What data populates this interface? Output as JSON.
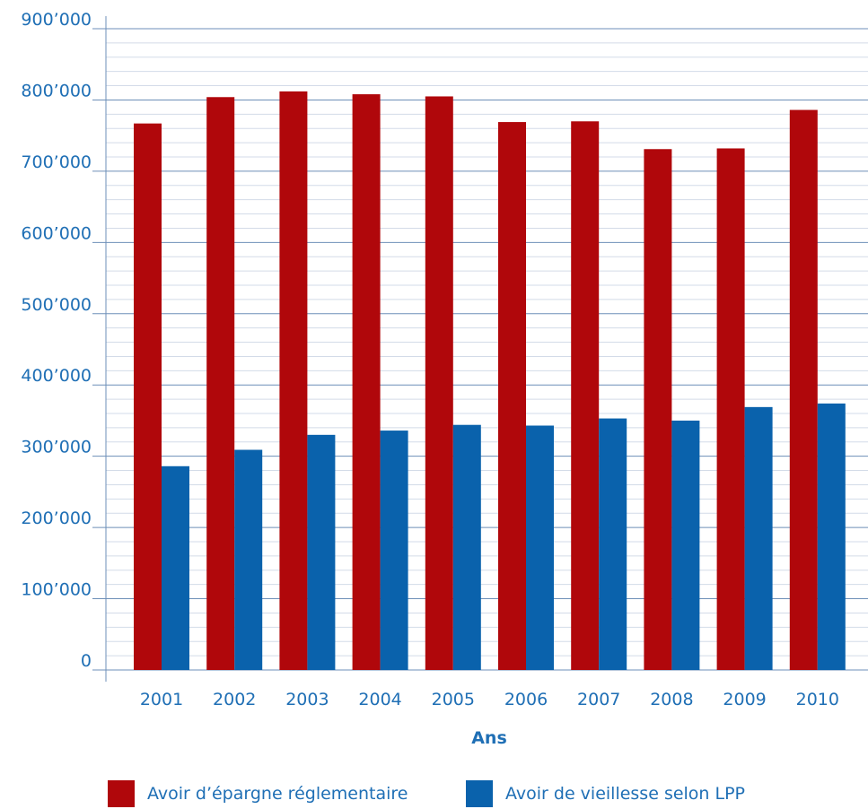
{
  "chart_data": {
    "type": "bar",
    "categories": [
      "2001",
      "2002",
      "2003",
      "2004",
      "2005",
      "2006",
      "2007",
      "2008",
      "2009",
      "2010"
    ],
    "series": [
      {
        "name": "Avoir d’épargne réglementaire",
        "color": "#b0070b",
        "values": [
          767000,
          804000,
          812000,
          808000,
          805000,
          769000,
          770000,
          731000,
          732000,
          786000
        ]
      },
      {
        "name": "Avoir de vieillesse selon LPP",
        "color": "#0a62ac",
        "values": [
          286000,
          309000,
          330000,
          336000,
          344000,
          343000,
          353000,
          350000,
          369000,
          374000
        ]
      }
    ],
    "yticks": [
      "0",
      "100’000",
      "200’000",
      "300’000",
      "400’000",
      "500’000",
      "600’000",
      "700’000",
      "800’000",
      "900’000"
    ],
    "ylim": [
      0,
      900000
    ],
    "xlabel": "Ans",
    "grid": true,
    "legend": "bottom"
  }
}
